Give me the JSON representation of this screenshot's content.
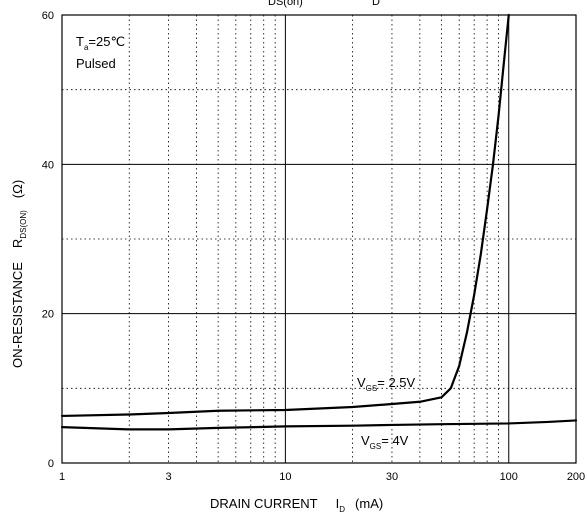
{
  "chart_data": {
    "type": "line",
    "title": "",
    "xscale": "log",
    "xlim": [
      1,
      200
    ],
    "ylim": [
      0,
      60
    ],
    "x_ticks": [
      1,
      3,
      10,
      30,
      100,
      200
    ],
    "x_tick_labels": [
      "1",
      "3",
      "10",
      "30",
      "100",
      "200"
    ],
    "y_ticks": [
      0,
      20,
      40,
      60
    ],
    "y_tick_labels": [
      "0",
      "20",
      "40",
      "60"
    ],
    "xlabel": {
      "main": "DRAIN CURRENT",
      "symbol": "I",
      "symbol_sub": "D",
      "unit": "(mA)"
    },
    "ylabel": {
      "main": "ON-RESISTANCE",
      "symbol": "R",
      "symbol_sub": "DS(ON)",
      "unit": "(Ω)"
    },
    "top_title_fragments": [
      "DS(on)",
      "D"
    ],
    "conditions": {
      "temp_symbol": "T",
      "temp_sub": "a",
      "temp_value": "=25℃",
      "mode": "Pulsed"
    },
    "grid": true,
    "series": [
      {
        "name": "VGS = 2.5V",
        "label_symbol": "V",
        "label_sub": "GS",
        "label_value": "= 2.5V",
        "points": [
          [
            1,
            6.3
          ],
          [
            2,
            6.5
          ],
          [
            3,
            6.7
          ],
          [
            5,
            7.0
          ],
          [
            10,
            7.1
          ],
          [
            20,
            7.5
          ],
          [
            30,
            7.9
          ],
          [
            40,
            8.2
          ],
          [
            50,
            8.8
          ],
          [
            55,
            10.0
          ],
          [
            60,
            13.0
          ],
          [
            65,
            17.5
          ],
          [
            70,
            22.5
          ],
          [
            75,
            28.0
          ],
          [
            80,
            34.0
          ],
          [
            85,
            40.0
          ],
          [
            90,
            46.5
          ],
          [
            95,
            53.5
          ],
          [
            100,
            60.0
          ]
        ]
      },
      {
        "name": "VGS = 4V",
        "label_symbol": "V",
        "label_sub": "GS",
        "label_value": "= 4V",
        "points": [
          [
            1,
            4.8
          ],
          [
            2,
            4.5
          ],
          [
            3,
            4.5
          ],
          [
            5,
            4.7
          ],
          [
            10,
            4.9
          ],
          [
            20,
            5.0
          ],
          [
            30,
            5.1
          ],
          [
            50,
            5.2
          ],
          [
            100,
            5.3
          ],
          [
            150,
            5.5
          ],
          [
            200,
            5.7
          ]
        ]
      }
    ]
  }
}
